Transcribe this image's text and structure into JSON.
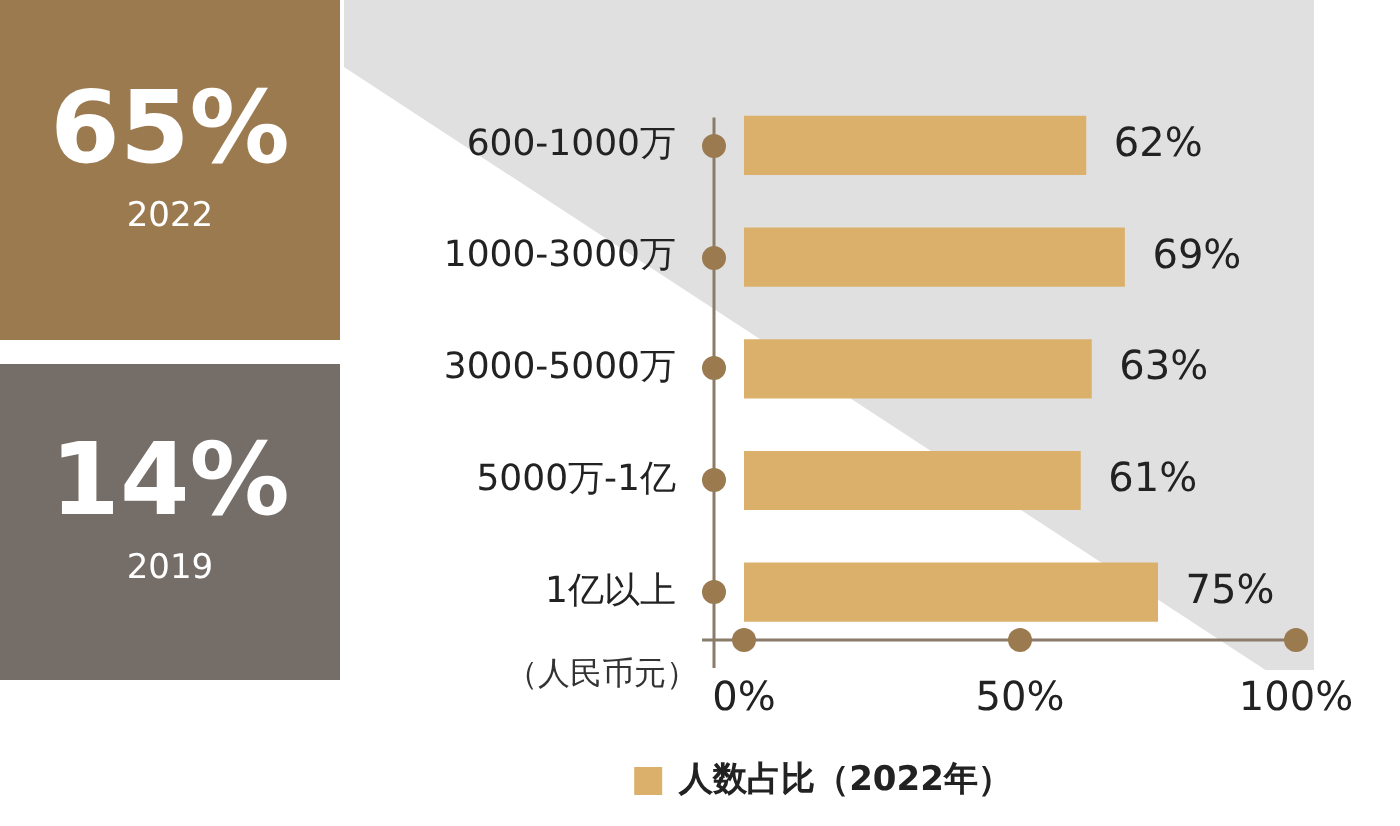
{
  "chart_data": [
    {
      "type": "other",
      "annotations": [
        "65%",
        "2022",
        "14%",
        "2019"
      ]
    },
    {
      "type": "bar",
      "orientation": "horizontal",
      "categories": [
        "600-1000万",
        "1000-3000万",
        "3000-5000万",
        "5000万-1亿",
        "1亿以上"
      ],
      "series": [
        {
          "name": "人数占比（2022年）",
          "color": "#dbb06b",
          "values": [
            62,
            69,
            63,
            61,
            75
          ],
          "value_labels": [
            "62%",
            "69%",
            "63%",
            "61%",
            "75%"
          ]
        }
      ],
      "xlim": [
        0,
        100
      ],
      "xticks": [
        {
          "value": 0,
          "label": "0%"
        },
        {
          "value": 50,
          "label": "50%"
        },
        {
          "value": 100,
          "label": "100%"
        }
      ],
      "ylabel": "（人民币元）",
      "legend": "bottom"
    }
  ]
}
